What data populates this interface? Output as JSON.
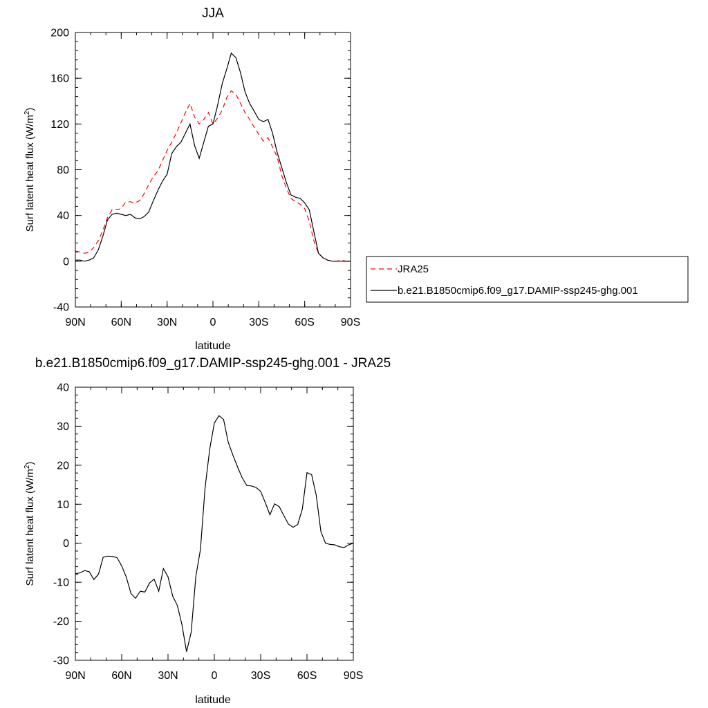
{
  "chart_data": [
    {
      "type": "line",
      "title": "JJA",
      "xlabel": "latitude",
      "ylabel": "Surf latent heat flux (W/m²)",
      "ylabel_main": "Surf latent heat flux (W/m",
      "ylabel_sup": "2",
      "ylabel_tail": ")",
      "xlim": [
        90,
        -90
      ],
      "ylim": [
        -40,
        200
      ],
      "x_ticks": [
        90,
        60,
        30,
        0,
        -30,
        -60,
        -90
      ],
      "x_tick_labels": [
        "90N",
        "60N",
        "30N",
        "0",
        "30S",
        "60S",
        "90S"
      ],
      "y_ticks": [
        -40,
        0,
        40,
        80,
        120,
        160,
        200
      ],
      "y_tick_labels": [
        "-40",
        "0",
        "40",
        "80",
        "120",
        "160",
        "200"
      ],
      "grid": false,
      "legend_position": "right, outside plot",
      "series": [
        {
          "name": "JRA25",
          "color": "#ff0000",
          "style": "dashed",
          "x": [
            90,
            87,
            84,
            81,
            78,
            75,
            72,
            69,
            66,
            63,
            60,
            57,
            54,
            51,
            48,
            45,
            42,
            39,
            36,
            33,
            30,
            27,
            24,
            21,
            18,
            15,
            12,
            9,
            6,
            3,
            0,
            -3,
            -6,
            -9,
            -12,
            -15,
            -18,
            -21,
            -24,
            -27,
            -30,
            -33,
            -36,
            -39,
            -42,
            -45,
            -48,
            -51,
            -54,
            -57,
            -60,
            -63,
            -66,
            -69,
            -72,
            -75,
            -78,
            -81,
            -84,
            -87,
            -90
          ],
          "y": [
            9,
            8,
            7,
            8,
            12,
            18,
            27,
            38,
            45,
            45,
            46,
            52,
            52,
            51,
            53,
            59,
            67,
            74,
            79,
            88,
            97,
            104,
            112,
            121,
            130,
            138,
            126,
            120,
            124,
            130,
            120,
            125,
            132,
            143,
            149,
            146,
            138,
            130,
            124,
            117,
            111,
            105,
            108,
            100,
            91,
            75,
            64,
            55,
            52,
            50,
            46,
            35,
            18,
            7,
            3,
            1,
            0,
            0,
            1,
            0,
            0
          ]
        },
        {
          "name": "b.e21.B1850cmip6.f09_g17.DAMIP-ssp245-ghg.001",
          "color": "#000000",
          "style": "solid",
          "x": [
            90,
            87,
            84,
            81,
            78,
            75,
            72,
            69,
            66,
            63,
            60,
            57,
            54,
            51,
            48,
            45,
            42,
            39,
            36,
            33,
            30,
            27,
            24,
            21,
            18,
            15,
            12,
            9,
            6,
            3,
            0,
            -3,
            -6,
            -9,
            -12,
            -15,
            -18,
            -21,
            -24,
            -27,
            -30,
            -33,
            -36,
            -39,
            -42,
            -45,
            -48,
            -51,
            -54,
            -57,
            -60,
            -63,
            -66,
            -69,
            -72,
            -75,
            -78,
            -81,
            -84,
            -87,
            -90
          ],
          "y": [
            1,
            1,
            0,
            1,
            3,
            10,
            22,
            36,
            41,
            42,
            41,
            40,
            41,
            38,
            37,
            39,
            43,
            53,
            62,
            70,
            76,
            94,
            100,
            104,
            112,
            120,
            101,
            90,
            104,
            118,
            120,
            136,
            155,
            168,
            182,
            178,
            165,
            148,
            138,
            131,
            124,
            122,
            124,
            112,
            95,
            82,
            69,
            58,
            56,
            55,
            51,
            45,
            26,
            7,
            3,
            1,
            0,
            0,
            0,
            0,
            0
          ]
        }
      ]
    },
    {
      "type": "line",
      "title": "b.e21.B1850cmip6.f09_g17.DAMIP-ssp245-ghg.001 - JRA25",
      "xlabel": "latitude",
      "ylabel": "Surf latent heat flux (W/m²)",
      "ylabel_main": "Surf latent heat flux (W/m",
      "ylabel_sup": "2",
      "ylabel_tail": ")",
      "xlim": [
        90,
        -90
      ],
      "ylim": [
        -30,
        40
      ],
      "x_ticks": [
        90,
        60,
        30,
        0,
        -30,
        -60,
        -90
      ],
      "x_tick_labels": [
        "90N",
        "60N",
        "30N",
        "0",
        "30S",
        "60S",
        "90S"
      ],
      "y_ticks": [
        -30,
        -20,
        -10,
        0,
        10,
        20,
        30,
        40
      ],
      "y_tick_labels": [
        "-30",
        "-20",
        "-10",
        "0",
        "10",
        "20",
        "30",
        "40"
      ],
      "grid": false,
      "series": [
        {
          "color": "#000000",
          "style": "solid",
          "x": [
            90,
            87,
            84,
            81,
            78,
            75,
            72,
            69,
            66,
            63,
            60,
            57,
            54,
            51,
            48,
            45,
            42,
            39,
            36,
            33,
            30,
            27,
            24,
            21,
            18,
            15,
            12,
            9,
            6,
            3,
            0,
            -3,
            -6,
            -9,
            -12,
            -15,
            -18,
            -21,
            -24,
            -27,
            -30,
            -33,
            -36,
            -39,
            -42,
            -45,
            -48,
            -51,
            -54,
            -57,
            -60,
            -63,
            -66,
            -69,
            -72,
            -75,
            -78,
            -81,
            -84,
            -87,
            -90
          ],
          "y": [
            -7.8,
            -7.6,
            -7,
            -7.3,
            -9.3,
            -7.9,
            -3.6,
            -3.3,
            -3.4,
            -3.7,
            -5.8,
            -8.7,
            -12.9,
            -14.1,
            -12.3,
            -12.5,
            -10.2,
            -9.2,
            -12.3,
            -6.5,
            -8.6,
            -13.5,
            -15.9,
            -20.8,
            -27.8,
            -22.8,
            -8.6,
            -1.6,
            14.2,
            24.1,
            30.8,
            32.7,
            31.7,
            25.9,
            22.6,
            19.6,
            16.8,
            14.8,
            14.7,
            14.3,
            13.3,
            10.4,
            7.3,
            10.1,
            9.4,
            7.1,
            4.9,
            4.1,
            4.8,
            8.8,
            18.1,
            17.6,
            12.3,
            3,
            0,
            -0.3,
            -0.4,
            -0.9,
            -1.1,
            -0.4,
            0
          ]
        }
      ]
    }
  ]
}
